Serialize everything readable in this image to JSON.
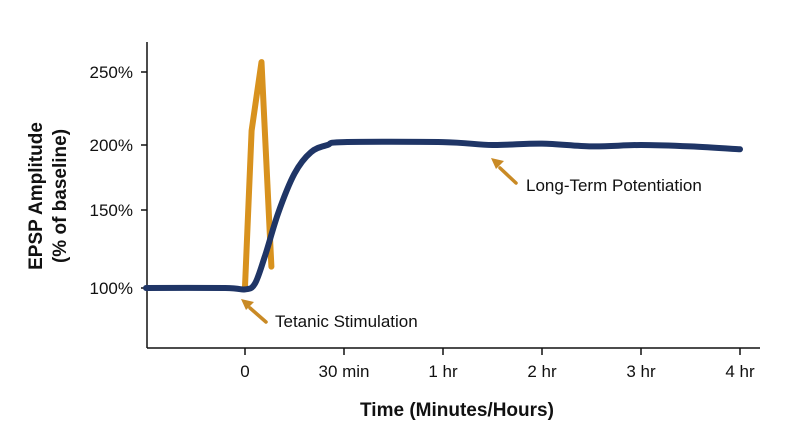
{
  "chart_data": {
    "type": "line",
    "title": "",
    "xlabel": "Time (Minutes/Hours)",
    "ylabel_lines": [
      "EPSP Amplitude",
      "(% of baseline)"
    ],
    "x_ticks": [
      "0",
      "30 min",
      "1 hr",
      "2 hr",
      "3 hr",
      "4 hr"
    ],
    "y_ticks": [
      "100%",
      "150%",
      "200%",
      "250%"
    ],
    "ylim": [
      50,
      270
    ],
    "grid": false,
    "legend": "none",
    "colors": {
      "ltp": "#1f3566",
      "stimulation": "#d8921e",
      "arrow": "#c98a25"
    },
    "series": [
      {
        "key": "ltp",
        "x": [
          "-0:30",
          "-0:06",
          "0",
          "0:03",
          "0:06",
          "0:10",
          "0:15",
          "0:20",
          "0:25",
          "30 min",
          "1 hr",
          "1.5 hr",
          "2 hr",
          "2.5 hr",
          "3 hr",
          "3.5 hr",
          "4 hr"
        ],
        "values": [
          100,
          100,
          99,
          103,
          122,
          152,
          180,
          195,
          200,
          202,
          202,
          200,
          201,
          199,
          200,
          199,
          197
        ]
      },
      {
        "key": "stimulation",
        "x": [
          "0",
          "0:02",
          "0:05",
          "0:08"
        ],
        "values": [
          101,
          210,
          258,
          115
        ]
      }
    ],
    "annotations": [
      {
        "text": "Tetanic Stimulation",
        "points_to": "0",
        "value": 100
      },
      {
        "text": "Long-Term Potentiation",
        "points_to": "1.5 hr",
        "value": 200
      }
    ]
  }
}
